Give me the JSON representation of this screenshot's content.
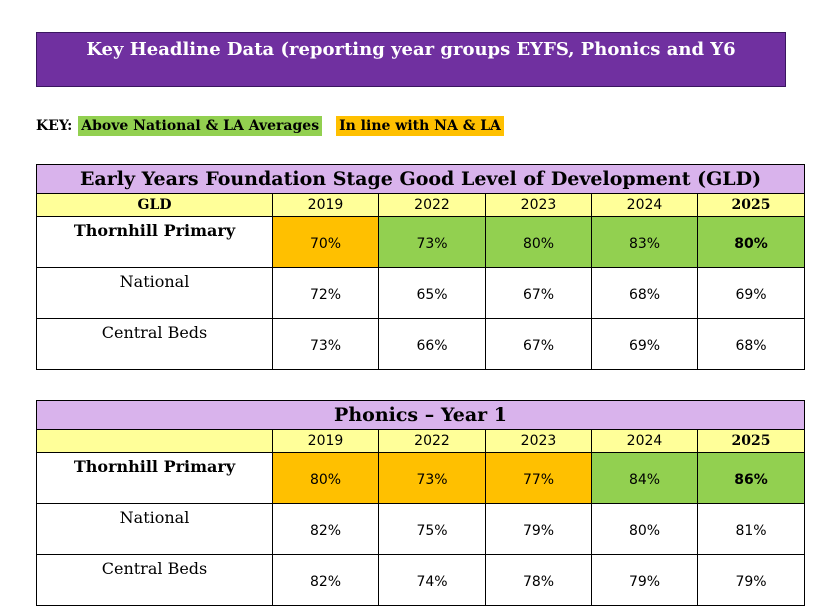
{
  "banner": {
    "title": "Key Headline Data (reporting year groups EYFS, Phonics and Y6"
  },
  "key": {
    "label": "KEY:",
    "above": "Above National & LA Averages",
    "inline": "In line with NA & LA"
  },
  "colors": {
    "above": "#92d050",
    "inline": "#ffc000",
    "banner": "#7030a0",
    "title_row": "#d9b3ec",
    "header_row": "#ffff99"
  },
  "eyfs": {
    "title": "Early Years Foundation Stage Good Level of Development (GLD)",
    "header_label": "GLD",
    "years": [
      "2019",
      "2022",
      "2023",
      "2024",
      "2025"
    ],
    "rows": [
      {
        "label": "Thornhill Primary",
        "values": [
          "70%",
          "73%",
          "80%",
          "83%",
          "80%"
        ]
      },
      {
        "label": "National",
        "values": [
          "72%",
          "65%",
          "67%",
          "68%",
          "69%"
        ]
      },
      {
        "label": "Central Beds",
        "values": [
          "73%",
          "66%",
          "67%",
          "69%",
          "68%"
        ]
      }
    ]
  },
  "phonics": {
    "title": "Phonics – Year 1",
    "header_label": "",
    "years": [
      "2019",
      "2022",
      "2023",
      "2024",
      "2025"
    ],
    "rows": [
      {
        "label": "Thornhill Primary",
        "values": [
          "80%",
          "73%",
          "77%",
          "84%",
          "86%"
        ]
      },
      {
        "label": "National",
        "values": [
          "82%",
          "75%",
          "79%",
          "80%",
          "81%"
        ]
      },
      {
        "label": "Central Beds",
        "values": [
          "82%",
          "74%",
          "78%",
          "79%",
          "79%"
        ]
      }
    ]
  }
}
